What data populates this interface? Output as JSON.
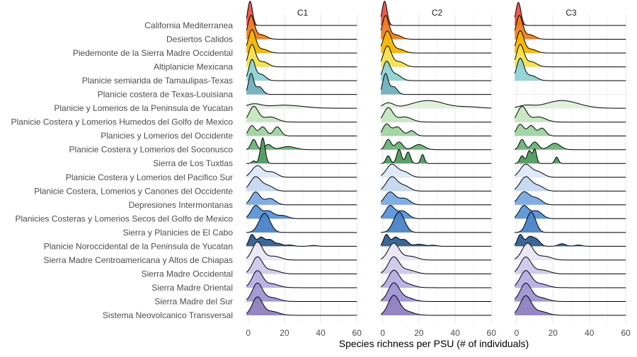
{
  "chart_data": {
    "type": "ridgeline",
    "xlabel": "Species richness per PSU (# of individuals)",
    "xlim": [
      0,
      60
    ],
    "xticks": [
      0,
      20,
      40,
      60
    ],
    "grid": true,
    "legend": "none",
    "facets": [
      "C1",
      "C2",
      "C3"
    ],
    "regions": [
      {
        "name": "California Mediterranea",
        "color": "#e8524a",
        "C1": [
          [
            1,
            0.95,
            1.3
          ]
        ],
        "C2": [
          [
            1,
            0.95,
            1.4
          ]
        ],
        "C3": [
          [
            1,
            0.9,
            1.4
          ]
        ]
      },
      {
        "name": "Desiertos Calidos",
        "color": "#ee7d22",
        "C1": [
          [
            1.5,
            0.9,
            1.8
          ],
          [
            7,
            0.18,
            3
          ]
        ],
        "C2": [
          [
            1.5,
            0.9,
            1.8
          ],
          [
            7,
            0.18,
            3
          ]
        ],
        "C3": [
          [
            1.5,
            0.9,
            1.8
          ],
          [
            7,
            0.18,
            3
          ]
        ]
      },
      {
        "name": "Piedemonte de la Sierra Madre Occidental",
        "color": "#f6b400",
        "C1": [
          [
            2,
            0.9,
            2.0
          ],
          [
            8,
            0.15,
            3
          ]
        ],
        "C2": [
          [
            2.5,
            0.85,
            2.3
          ],
          [
            9,
            0.15,
            3
          ]
        ],
        "C3": [
          [
            2,
            0.85,
            2.0
          ],
          [
            8,
            0.15,
            3
          ]
        ]
      },
      {
        "name": "Altiplanicie Mexicana",
        "color": "#f4e04d",
        "C1": [
          [
            2,
            0.85,
            1.9
          ],
          [
            8,
            0.2,
            3
          ]
        ],
        "C2": [
          [
            2.5,
            0.8,
            2.2
          ],
          [
            9,
            0.2,
            3
          ]
        ],
        "C3": [
          [
            2,
            0.85,
            2.0
          ],
          [
            8,
            0.2,
            3
          ]
        ]
      },
      {
        "name": "Planicie semiarida de Tamaulipas-Texas",
        "color": "#8fd3d1",
        "C1": [
          [
            2,
            0.8,
            1.7
          ],
          [
            7,
            0.25,
            2.5
          ]
        ],
        "C2": [
          [
            2,
            0.7,
            2.0
          ],
          [
            7,
            0.25,
            3
          ]
        ],
        "C3": [
          [
            2,
            0.85,
            2.0
          ],
          [
            8,
            0.2,
            3
          ]
        ]
      },
      {
        "name": "Planicie costera de Texas-Louisiana",
        "color": "#6fb0bf",
        "C1": [
          [
            1.5,
            0.8,
            1.4
          ],
          [
            6,
            0.3,
            2
          ]
        ],
        "C2": [
          [
            1.5,
            0.8,
            1.5
          ],
          [
            6,
            0.3,
            2
          ]
        ],
        "C3": []
      },
      {
        "name": "Planicie y Lomerios de la Peninsula de Yucatan",
        "color": "#dff0dc",
        "C1": [
          [
            3,
            0.15,
            4
          ],
          [
            20,
            0.12,
            10
          ]
        ],
        "C2": [
          [
            3,
            0.2,
            3
          ],
          [
            25,
            0.3,
            9
          ],
          [
            48,
            0.05,
            6
          ]
        ],
        "C3": [
          [
            5,
            0.1,
            4
          ],
          [
            25,
            0.3,
            9
          ]
        ]
      },
      {
        "name": "Planicie Costera y Lomerios Humedos del Golfo de Mexico",
        "color": "#c5e6c0",
        "C1": [
          [
            3,
            0.6,
            2.5
          ],
          [
            12,
            0.2,
            4
          ]
        ],
        "C2": [
          [
            3,
            0.55,
            2.5
          ],
          [
            12,
            0.2,
            4
          ]
        ],
        "C3": [
          [
            3,
            0.6,
            2.5
          ],
          [
            12,
            0.2,
            4
          ]
        ]
      },
      {
        "name": "Planicies y Lomerios del Occidente",
        "color": "#9fd3a0",
        "C1": [
          [
            2,
            0.4,
            1.8
          ],
          [
            8,
            0.35,
            2
          ],
          [
            16,
            0.35,
            2
          ]
        ],
        "C2": [
          [
            2,
            0.45,
            2
          ],
          [
            8,
            0.35,
            2.5
          ],
          [
            16,
            0.2,
            2
          ]
        ],
        "C3": [
          [
            2,
            0.45,
            2
          ],
          [
            8,
            0.4,
            2
          ],
          [
            14,
            0.3,
            2
          ]
        ]
      },
      {
        "name": "Planicie Costera y Lomerios del Soconusco",
        "color": "#6cb277",
        "C1": [
          [
            3,
            0.4,
            1.5
          ],
          [
            11,
            0.2,
            2
          ],
          [
            22,
            0.12,
            4
          ]
        ],
        "C2": [
          [
            3,
            0.4,
            1.6
          ],
          [
            9,
            0.3,
            2
          ],
          [
            20,
            0.2,
            3
          ]
        ],
        "C3": [
          [
            3,
            0.4,
            1.5
          ],
          [
            10,
            0.3,
            2
          ],
          [
            21,
            0.25,
            3
          ]
        ]
      },
      {
        "name": "Sierra de Los Tuxtlas",
        "color": "#4e9a5e",
        "C1": [
          [
            8,
            1.0,
            1.3
          ],
          [
            3,
            0.1,
            1
          ]
        ],
        "C2": [
          [
            3,
            0.3,
            1.2
          ],
          [
            9,
            0.55,
            1.3
          ],
          [
            14,
            0.45,
            1.3
          ],
          [
            22,
            0.35,
            1
          ]
        ],
        "C3": [
          [
            3,
            0.3,
            1.2
          ],
          [
            7,
            0.5,
            1.2
          ],
          [
            10,
            0.55,
            1
          ],
          [
            22,
            0.25,
            1
          ]
        ]
      },
      {
        "name": "Planicie Costera y Lomerios del Pacifico Sur",
        "color": "#dde8f7",
        "C1": [
          [
            5,
            0.45,
            3
          ],
          [
            13,
            0.2,
            3
          ]
        ],
        "C2": [
          [
            5,
            0.5,
            3
          ],
          [
            12,
            0.2,
            3
          ]
        ],
        "C3": [
          [
            5,
            0.5,
            3
          ],
          [
            12,
            0.2,
            3
          ]
        ]
      },
      {
        "name": "Planicie Costera, Lomerios y Canones del Occidente",
        "color": "#c4d8f1",
        "C1": [
          [
            4,
            0.55,
            3
          ],
          [
            11,
            0.2,
            3
          ]
        ],
        "C2": [
          [
            5,
            0.55,
            3
          ],
          [
            12,
            0.2,
            3
          ]
        ],
        "C3": [
          [
            5,
            0.55,
            3
          ],
          [
            12,
            0.2,
            3
          ]
        ]
      },
      {
        "name": "Depresiones Intermontanas",
        "color": "#7aa9e2",
        "C1": [
          [
            4,
            0.5,
            2.5
          ],
          [
            12,
            0.25,
            3
          ]
        ],
        "C2": [
          [
            4,
            0.5,
            3
          ],
          [
            12,
            0.25,
            3
          ]
        ],
        "C3": [
          [
            4,
            0.5,
            3
          ],
          [
            11,
            0.25,
            3
          ]
        ]
      },
      {
        "name": "Planicies Costeras y Lomerios Secos del Golfo de Mexico",
        "color": "#5b93d8",
        "C1": [
          [
            4,
            0.5,
            2.5
          ],
          [
            11,
            0.3,
            3
          ],
          [
            19,
            0.12,
            3
          ]
        ],
        "C2": [
          [
            4,
            0.5,
            2.5
          ],
          [
            11,
            0.3,
            3
          ]
        ],
        "C3": [
          [
            4,
            0.5,
            2.5
          ],
          [
            11,
            0.3,
            3
          ]
        ]
      },
      {
        "name": "Sierra y Planicies de El Cabo",
        "color": "#4a82c8",
        "C1": [
          [
            9,
            0.75,
            3
          ]
        ],
        "C2": [
          [
            9,
            0.8,
            3
          ]
        ],
        "C3": [
          [
            8,
            0.8,
            2.5
          ]
        ]
      },
      {
        "name": "Planicie Noroccidental de la  Peninsula de Yucatan",
        "color": "#2f5d90",
        "C1": [
          [
            2,
            0.45,
            1.5
          ],
          [
            7,
            0.35,
            2
          ],
          [
            12,
            0.25,
            2
          ],
          [
            17,
            0.1,
            2
          ],
          [
            23,
            0.05,
            2
          ],
          [
            36,
            0.03,
            2
          ]
        ],
        "C2": [
          [
            2,
            0.45,
            1.5
          ],
          [
            7,
            0.35,
            2
          ],
          [
            12,
            0.25,
            2
          ],
          [
            20,
            0.08,
            3
          ],
          [
            28,
            0.04,
            2
          ]
        ],
        "C3": [
          [
            2,
            0.45,
            1.5
          ],
          [
            7,
            0.35,
            2
          ],
          [
            11,
            0.25,
            2
          ],
          [
            25,
            0.1,
            2
          ],
          [
            34,
            0.05,
            2
          ]
        ]
      },
      {
        "name": "Sierra Madre Centroamericana y Altos de Chiapas",
        "color": "#e9e6f6",
        "C1": [
          [
            5,
            0.7,
            2.8
          ],
          [
            14,
            0.15,
            4
          ]
        ],
        "C2": [
          [
            6,
            0.65,
            3
          ],
          [
            15,
            0.15,
            4
          ]
        ],
        "C3": [
          [
            6,
            0.65,
            3
          ],
          [
            15,
            0.15,
            4
          ]
        ]
      },
      {
        "name": "Sierra Madre Occidental",
        "color": "#cfc9ec",
        "C1": [
          [
            5,
            0.65,
            2.8
          ],
          [
            13,
            0.15,
            4
          ]
        ],
        "C2": [
          [
            6,
            0.65,
            3
          ],
          [
            14,
            0.15,
            4
          ]
        ],
        "C3": [
          [
            5,
            0.65,
            3
          ],
          [
            14,
            0.15,
            4
          ]
        ]
      },
      {
        "name": "Sierra Madre Oriental",
        "color": "#b7aee3",
        "C1": [
          [
            5,
            0.65,
            2.8
          ],
          [
            13,
            0.15,
            4
          ]
        ],
        "C2": [
          [
            6,
            0.65,
            3
          ],
          [
            13,
            0.15,
            4
          ]
        ],
        "C3": [
          [
            5,
            0.65,
            3
          ],
          [
            13,
            0.15,
            4
          ]
        ]
      },
      {
        "name": "Sierra Madre del Sur",
        "color": "#9f95d4",
        "C1": [
          [
            5,
            0.7,
            2.8
          ],
          [
            13,
            0.15,
            4
          ]
        ],
        "C2": [
          [
            6,
            0.7,
            3
          ],
          [
            13,
            0.15,
            4
          ]
        ],
        "C3": [
          [
            5,
            0.7,
            3
          ],
          [
            13,
            0.15,
            4
          ]
        ]
      },
      {
        "name": "Sistema Neovolcanico Transversal",
        "color": "#8f7fc0",
        "C1": [
          [
            5,
            0.7,
            2.8
          ],
          [
            13,
            0.15,
            4
          ]
        ],
        "C2": [
          [
            6,
            0.75,
            3
          ],
          [
            13,
            0.15,
            4
          ]
        ],
        "C3": [
          [
            5,
            0.75,
            3
          ],
          [
            13,
            0.15,
            4
          ]
        ]
      }
    ]
  }
}
